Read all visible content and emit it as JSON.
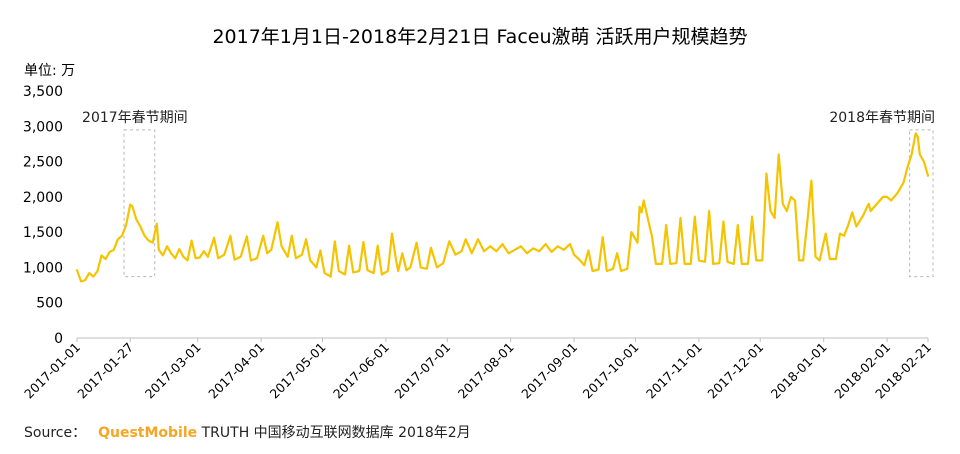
{
  "chart_data": {
    "type": "line",
    "title": "2017年1月1日-2018年2月21日 Faceu激萌 活跃用户规模趋势",
    "ylabel": "单位: 万",
    "ylim": [
      0,
      3500
    ],
    "yticks": [
      0,
      500,
      1000,
      1500,
      2000,
      2500,
      3000,
      3500
    ],
    "ytick_labels": [
      "0",
      "500",
      "1,000",
      "1,500",
      "2,000",
      "2,500",
      "3,000",
      "3,500"
    ],
    "grid": false,
    "color": "#f5c400",
    "x_range": [
      "2017-01-01",
      "2018-02-21"
    ],
    "xticks": [
      {
        "date": "2017-01-01",
        "label": "2017-01-01"
      },
      {
        "date": "2017-01-27",
        "label": "2017-01-27"
      },
      {
        "date": "2017-03-01",
        "label": "2017-03-01"
      },
      {
        "date": "2017-04-01",
        "label": "2017-04-01"
      },
      {
        "date": "2017-05-01",
        "label": "2017-05-01"
      },
      {
        "date": "2017-06-01",
        "label": "2017-06-01"
      },
      {
        "date": "2017-07-01",
        "label": "2017-07-01"
      },
      {
        "date": "2017-08-01",
        "label": "2017-08-01"
      },
      {
        "date": "2017-09-01",
        "label": "2017-09-01"
      },
      {
        "date": "2017-10-01",
        "label": "2017-10-01"
      },
      {
        "date": "2017-11-01",
        "label": "2017-11-01"
      },
      {
        "date": "2017-12-01",
        "label": "2017-12-01"
      },
      {
        "date": "2018-01-01",
        "label": "2018-01-01"
      },
      {
        "date": "2018-02-01",
        "label": "2018-02-01"
      },
      {
        "date": "2018-02-21",
        "label": "2018-02-21"
      }
    ],
    "annotations": [
      {
        "label": "2017年春节期间",
        "x_start": "2017-01-24",
        "x_end": "2017-02-08",
        "y_bottom": 870,
        "y_top": 2950,
        "label_align": "left"
      },
      {
        "label": "2018年春节期间",
        "x_start": "2018-02-12",
        "x_end": "2018-02-28",
        "y_bottom": 870,
        "y_top": 2950,
        "label_align": "right"
      }
    ],
    "series": [
      {
        "points": [
          [
            "2017-01-01",
            960
          ],
          [
            "2017-01-03",
            800
          ],
          [
            "2017-01-05",
            820
          ],
          [
            "2017-01-07",
            920
          ],
          [
            "2017-01-09",
            870
          ],
          [
            "2017-01-11",
            950
          ],
          [
            "2017-01-13",
            1170
          ],
          [
            "2017-01-15",
            1120
          ],
          [
            "2017-01-17",
            1220
          ],
          [
            "2017-01-19",
            1250
          ],
          [
            "2017-01-21",
            1400
          ],
          [
            "2017-01-23",
            1450
          ],
          [
            "2017-01-25",
            1600
          ],
          [
            "2017-01-27",
            1890
          ],
          [
            "2017-01-28",
            1870
          ],
          [
            "2017-01-30",
            1680
          ],
          [
            "2017-02-01",
            1580
          ],
          [
            "2017-02-03",
            1450
          ],
          [
            "2017-02-05",
            1380
          ],
          [
            "2017-02-07",
            1350
          ],
          [
            "2017-02-09",
            1620
          ],
          [
            "2017-02-10",
            1250
          ],
          [
            "2017-02-12",
            1170
          ],
          [
            "2017-02-14",
            1300
          ],
          [
            "2017-02-16",
            1200
          ],
          [
            "2017-02-18",
            1130
          ],
          [
            "2017-02-20",
            1260
          ],
          [
            "2017-02-22",
            1150
          ],
          [
            "2017-02-24",
            1100
          ],
          [
            "2017-02-26",
            1380
          ],
          [
            "2017-02-28",
            1130
          ],
          [
            "2017-03-02",
            1140
          ],
          [
            "2017-03-04",
            1230
          ],
          [
            "2017-03-06",
            1150
          ],
          [
            "2017-03-09",
            1420
          ],
          [
            "2017-03-11",
            1130
          ],
          [
            "2017-03-14",
            1180
          ],
          [
            "2017-03-17",
            1450
          ],
          [
            "2017-03-19",
            1110
          ],
          [
            "2017-03-22",
            1150
          ],
          [
            "2017-03-25",
            1440
          ],
          [
            "2017-03-27",
            1100
          ],
          [
            "2017-03-30",
            1130
          ],
          [
            "2017-04-02",
            1450
          ],
          [
            "2017-04-04",
            1200
          ],
          [
            "2017-04-06",
            1250
          ],
          [
            "2017-04-09",
            1640
          ],
          [
            "2017-04-11",
            1300
          ],
          [
            "2017-04-14",
            1150
          ],
          [
            "2017-04-16",
            1450
          ],
          [
            "2017-04-18",
            1130
          ],
          [
            "2017-04-21",
            1180
          ],
          [
            "2017-04-23",
            1400
          ],
          [
            "2017-04-25",
            1100
          ],
          [
            "2017-04-28",
            1000
          ],
          [
            "2017-04-30",
            1240
          ],
          [
            "2017-05-02",
            920
          ],
          [
            "2017-05-05",
            870
          ],
          [
            "2017-05-07",
            1370
          ],
          [
            "2017-05-09",
            950
          ],
          [
            "2017-05-12",
            900
          ],
          [
            "2017-05-14",
            1310
          ],
          [
            "2017-05-16",
            930
          ],
          [
            "2017-05-19",
            950
          ],
          [
            "2017-05-21",
            1360
          ],
          [
            "2017-05-23",
            960
          ],
          [
            "2017-05-26",
            920
          ],
          [
            "2017-05-28",
            1310
          ],
          [
            "2017-05-30",
            900
          ],
          [
            "2017-06-02",
            950
          ],
          [
            "2017-06-04",
            1480
          ],
          [
            "2017-06-06",
            1100
          ],
          [
            "2017-06-07",
            950
          ],
          [
            "2017-06-09",
            1200
          ],
          [
            "2017-06-11",
            960
          ],
          [
            "2017-06-13",
            1000
          ],
          [
            "2017-06-16",
            1350
          ],
          [
            "2017-06-18",
            1000
          ],
          [
            "2017-06-21",
            980
          ],
          [
            "2017-06-23",
            1280
          ],
          [
            "2017-06-26",
            1000
          ],
          [
            "2017-06-29",
            1060
          ],
          [
            "2017-07-02",
            1370
          ],
          [
            "2017-07-05",
            1180
          ],
          [
            "2017-07-08",
            1230
          ],
          [
            "2017-07-10",
            1400
          ],
          [
            "2017-07-13",
            1200
          ],
          [
            "2017-07-16",
            1400
          ],
          [
            "2017-07-19",
            1230
          ],
          [
            "2017-07-22",
            1300
          ],
          [
            "2017-07-25",
            1230
          ],
          [
            "2017-07-28",
            1330
          ],
          [
            "2017-07-31",
            1200
          ],
          [
            "2017-08-03",
            1250
          ],
          [
            "2017-08-06",
            1300
          ],
          [
            "2017-08-09",
            1200
          ],
          [
            "2017-08-12",
            1270
          ],
          [
            "2017-08-15",
            1230
          ],
          [
            "2017-08-18",
            1330
          ],
          [
            "2017-08-21",
            1220
          ],
          [
            "2017-08-24",
            1300
          ],
          [
            "2017-08-27",
            1250
          ],
          [
            "2017-08-30",
            1330
          ],
          [
            "2017-09-01",
            1180
          ],
          [
            "2017-09-04",
            1100
          ],
          [
            "2017-09-06",
            1030
          ],
          [
            "2017-09-08",
            1240
          ],
          [
            "2017-09-10",
            950
          ],
          [
            "2017-09-13",
            970
          ],
          [
            "2017-09-15",
            1430
          ],
          [
            "2017-09-17",
            950
          ],
          [
            "2017-09-20",
            980
          ],
          [
            "2017-09-22",
            1200
          ],
          [
            "2017-09-24",
            950
          ],
          [
            "2017-09-27",
            980
          ],
          [
            "2017-09-29",
            1500
          ],
          [
            "2017-10-02",
            1350
          ],
          [
            "2017-10-03",
            1860
          ],
          [
            "2017-10-04",
            1780
          ],
          [
            "2017-10-05",
            1950
          ],
          [
            "2017-10-07",
            1700
          ],
          [
            "2017-10-09",
            1450
          ],
          [
            "2017-10-11",
            1050
          ],
          [
            "2017-10-14",
            1050
          ],
          [
            "2017-10-16",
            1600
          ],
          [
            "2017-10-18",
            1050
          ],
          [
            "2017-10-21",
            1060
          ],
          [
            "2017-10-23",
            1700
          ],
          [
            "2017-10-25",
            1050
          ],
          [
            "2017-10-28",
            1050
          ],
          [
            "2017-10-30",
            1720
          ],
          [
            "2017-11-01",
            1100
          ],
          [
            "2017-11-04",
            1080
          ],
          [
            "2017-11-06",
            1800
          ],
          [
            "2017-11-08",
            1050
          ],
          [
            "2017-11-11",
            1060
          ],
          [
            "2017-11-13",
            1650
          ],
          [
            "2017-11-15",
            1080
          ],
          [
            "2017-11-18",
            1050
          ],
          [
            "2017-11-20",
            1600
          ],
          [
            "2017-11-22",
            1050
          ],
          [
            "2017-11-25",
            1050
          ],
          [
            "2017-11-27",
            1720
          ],
          [
            "2017-11-29",
            1100
          ],
          [
            "2017-12-02",
            1100
          ],
          [
            "2017-12-04",
            2330
          ],
          [
            "2017-12-06",
            1800
          ],
          [
            "2017-12-08",
            1700
          ],
          [
            "2017-12-10",
            2600
          ],
          [
            "2017-12-12",
            1900
          ],
          [
            "2017-12-14",
            1800
          ],
          [
            "2017-12-16",
            2000
          ],
          [
            "2017-12-18",
            1950
          ],
          [
            "2017-12-20",
            1100
          ],
          [
            "2017-12-22",
            1100
          ],
          [
            "2017-12-24",
            1650
          ],
          [
            "2017-12-26",
            2230
          ],
          [
            "2017-12-28",
            1150
          ],
          [
            "2017-12-30",
            1100
          ],
          [
            "2018-01-02",
            1480
          ],
          [
            "2018-01-04",
            1120
          ],
          [
            "2018-01-07",
            1120
          ],
          [
            "2018-01-09",
            1480
          ],
          [
            "2018-01-11",
            1450
          ],
          [
            "2018-01-13",
            1600
          ],
          [
            "2018-01-15",
            1780
          ],
          [
            "2018-01-17",
            1580
          ],
          [
            "2018-01-20",
            1720
          ],
          [
            "2018-01-23",
            1900
          ],
          [
            "2018-01-24",
            1800
          ],
          [
            "2018-01-27",
            1900
          ],
          [
            "2018-01-30",
            2000
          ],
          [
            "2018-02-01",
            2000
          ],
          [
            "2018-02-03",
            1950
          ],
          [
            "2018-02-06",
            2050
          ],
          [
            "2018-02-09",
            2200
          ],
          [
            "2018-02-11",
            2420
          ],
          [
            "2018-02-13",
            2600
          ],
          [
            "2018-02-15",
            2900
          ],
          [
            "2018-02-16",
            2850
          ],
          [
            "2018-02-17",
            2600
          ],
          [
            "2018-02-19",
            2500
          ],
          [
            "2018-02-21",
            2300
          ]
        ]
      }
    ]
  },
  "footer": {
    "source_label": "Source：",
    "separator": "",
    "brand": "QuestMobile",
    "rest": "TRUTH 中国移动互联网数据库 2018年2月"
  }
}
